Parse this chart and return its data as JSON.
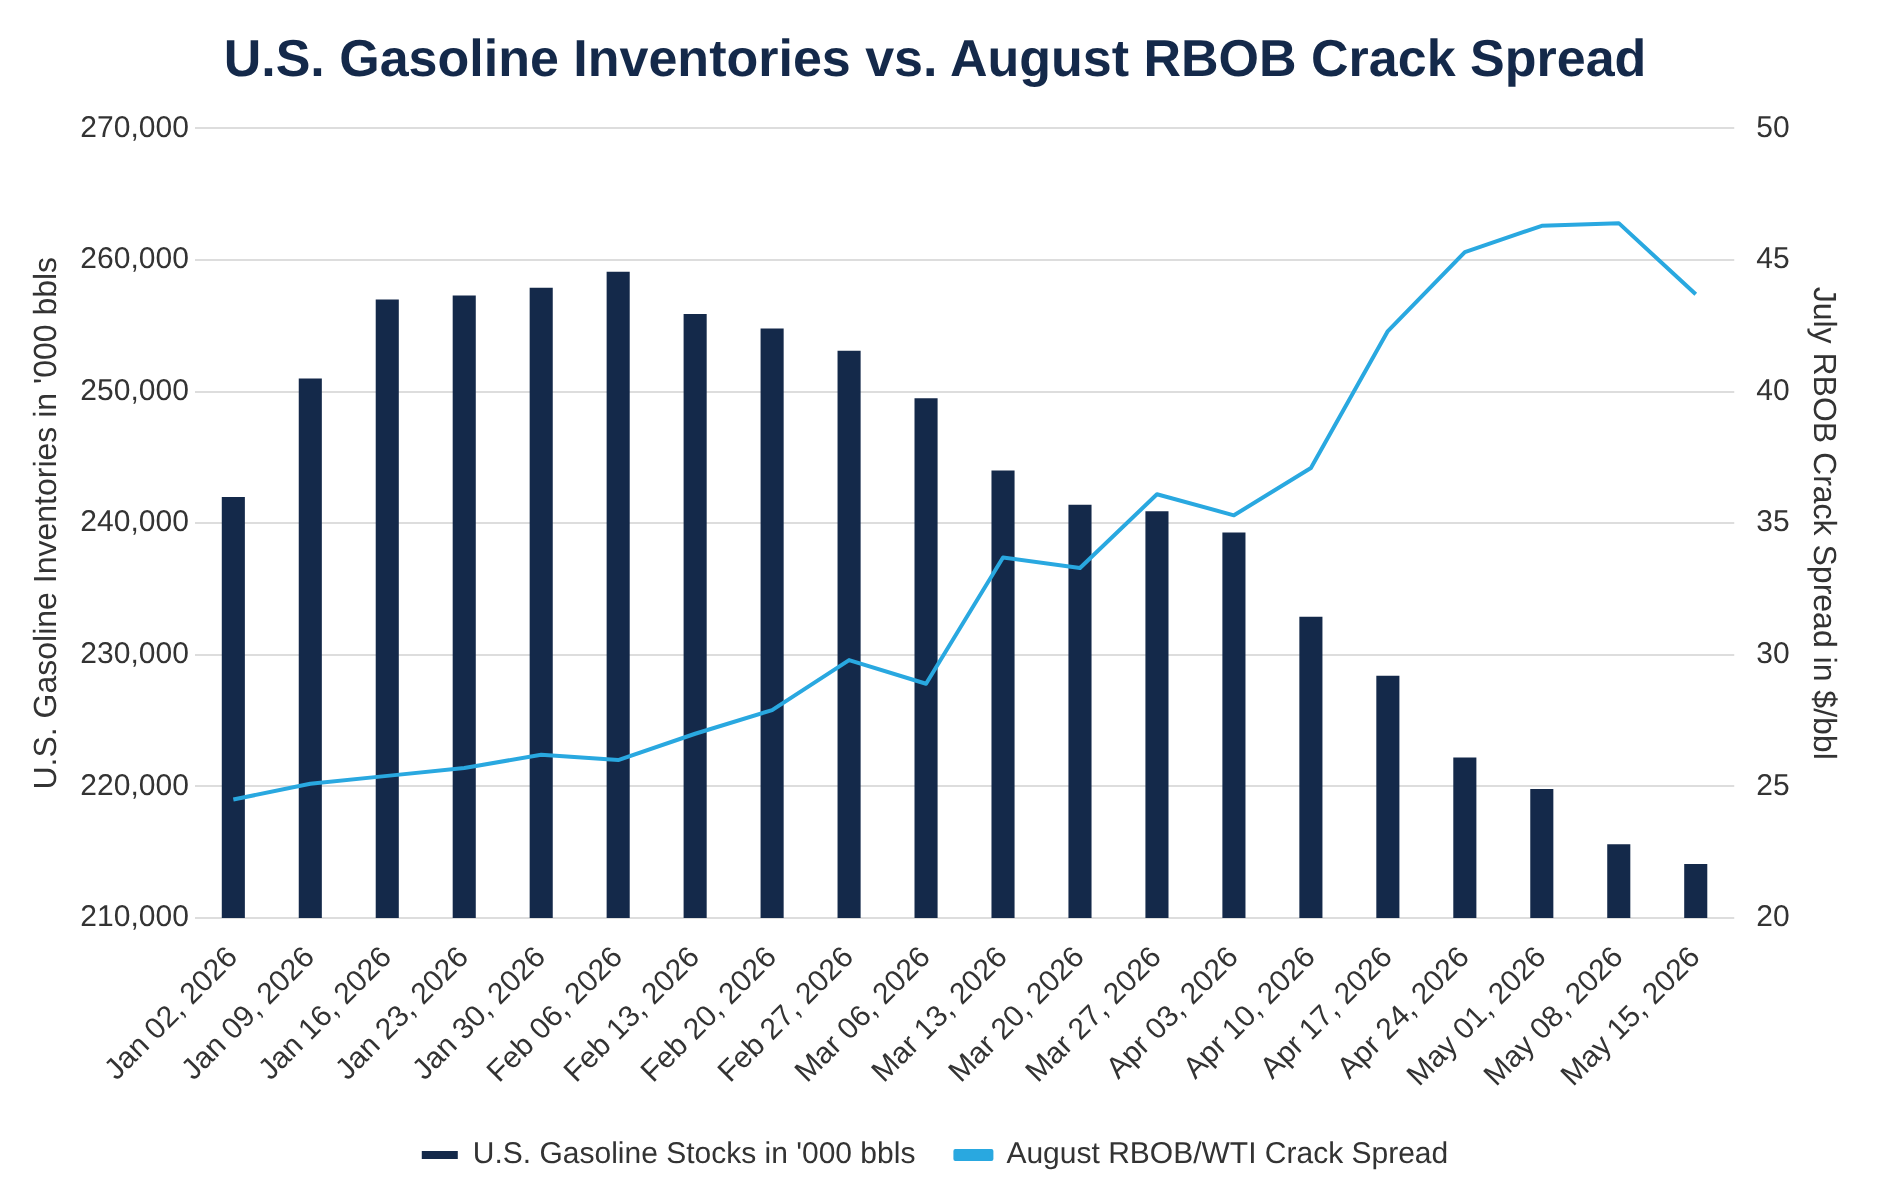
{
  "chart_data": {
    "type": "bar",
    "title": "U.S. Gasoline Inventories vs. August RBOB Crack Spread",
    "ylabel": "U.S. Gasoline Inventories in '000 bbls",
    "y2label": "July RBOB Crack Spread in $/bbl",
    "categories": [
      "Jan 02, 2026",
      "Jan 09, 2026",
      "Jan 16, 2026",
      "Jan 23, 2026",
      "Jan 30, 2026",
      "Feb 06, 2026",
      "Feb 13, 2026",
      "Feb 20, 2026",
      "Feb 27, 2026",
      "Mar 06, 2026",
      "Mar 13, 2026",
      "Mar 20, 2026",
      "Mar 27, 2026",
      "Apr 03, 2026",
      "Apr 10, 2026",
      "Apr 17, 2026",
      "Apr 24, 2026",
      "May 01, 2026",
      "May 08, 2026",
      "May 15, 2026"
    ],
    "series": [
      {
        "name": "U.S. Gasoline Stocks in '000 bbls",
        "color": "#14294a",
        "values": [
          242000,
          251000,
          257000,
          257300,
          257900,
          259100,
          255900,
          254800,
          253100,
          249500,
          244000,
          241400,
          240900,
          239300,
          232900,
          228400,
          222200,
          219800,
          215600,
          214100
        ]
      },
      {
        "name": "August RBOB/WTI Crack Spread",
        "type": "line",
        "axis": "y2",
        "color": "#29a8e0",
        "values": [
          24.5,
          25.1,
          25.4,
          25.7,
          26.2,
          26.0,
          27.0,
          27.9,
          29.8,
          28.9,
          33.7,
          33.3,
          36.1,
          35.3,
          37.1,
          42.3,
          45.3,
          46.3,
          46.4,
          43.7
        ]
      }
    ],
    "ylim": [
      210000,
      270000
    ],
    "yticks": [
      {
        "value": 210000,
        "label": "210,000"
      },
      {
        "value": 220000,
        "label": "220,000"
      },
      {
        "value": 230000,
        "label": "230,000"
      },
      {
        "value": 240000,
        "label": "240,000"
      },
      {
        "value": 250000,
        "label": "250,000"
      },
      {
        "value": 260000,
        "label": "260,000"
      },
      {
        "value": 270000,
        "label": "270,000"
      }
    ],
    "y2lim": [
      20,
      50
    ],
    "y2ticks": [
      20,
      25,
      30,
      35,
      40,
      45,
      50
    ],
    "grid": "y",
    "legend": "bottom",
    "marker": "none",
    "line_style": "solid"
  }
}
